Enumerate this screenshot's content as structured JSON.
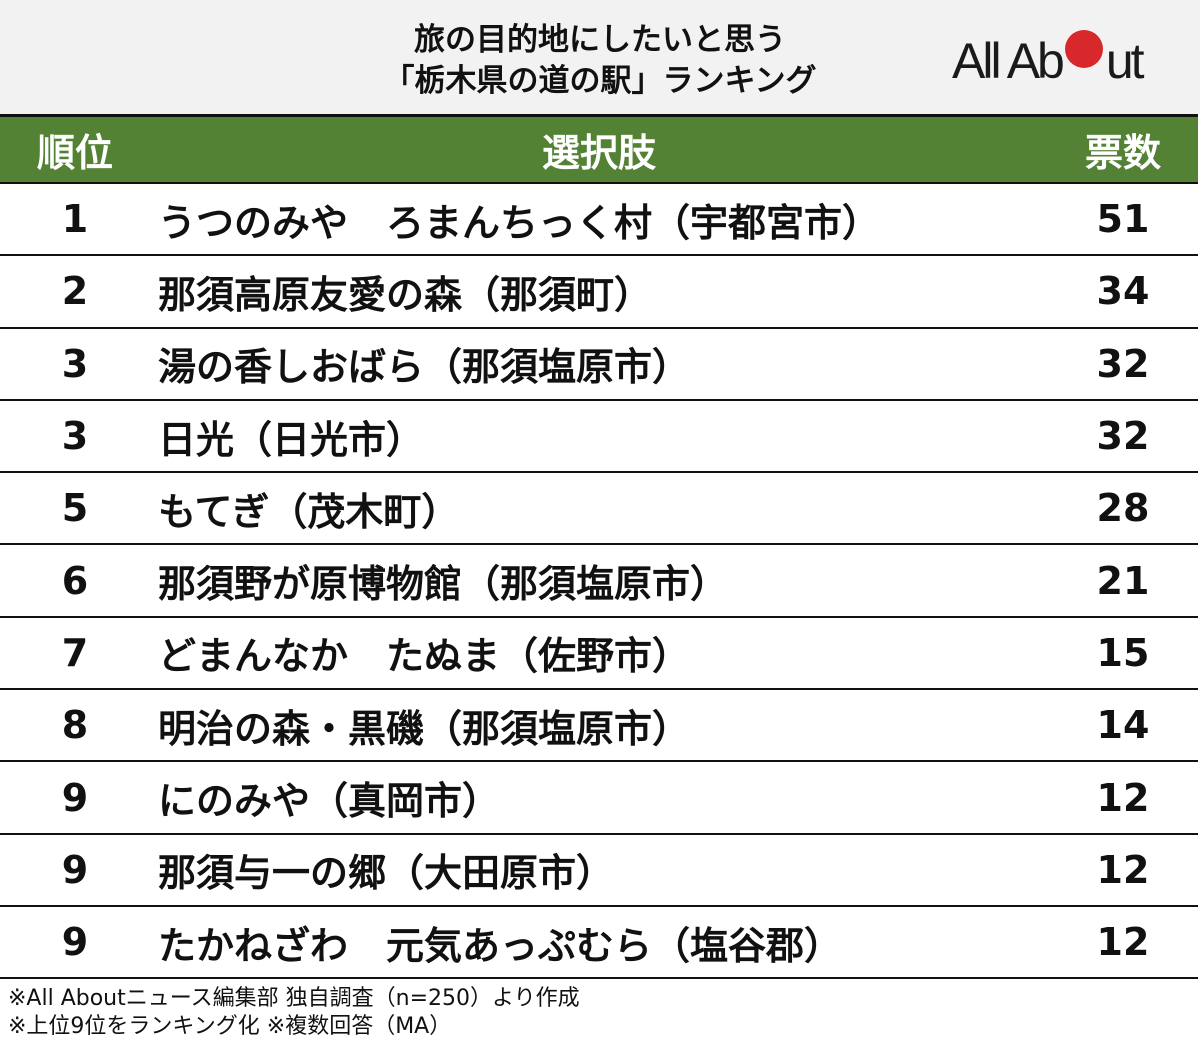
{
  "header": {
    "title_line1": "旅の目的地にしたいと思う",
    "title_line2": "「栃木県の道の駅」ランキング",
    "logo": {
      "text_before": "All Ab",
      "text_after": "ut",
      "dot_color": "#d7282b"
    }
  },
  "table": {
    "header_bg": "#548235",
    "columns": [
      "順位",
      "選択肢",
      "票数"
    ],
    "rows": [
      {
        "rank": "1",
        "name": "うつのみや　ろまんちっく村（宇都宮市）",
        "votes": "51"
      },
      {
        "rank": "2",
        "name": "那須高原友愛の森（那須町）",
        "votes": "34"
      },
      {
        "rank": "3",
        "name": "湯の香しおばら（那須塩原市）",
        "votes": "32"
      },
      {
        "rank": "3",
        "name": "日光（日光市）",
        "votes": "32"
      },
      {
        "rank": "5",
        "name": "もてぎ（茂木町）",
        "votes": "28"
      },
      {
        "rank": "6",
        "name": "那須野が原博物館（那須塩原市）",
        "votes": "21"
      },
      {
        "rank": "7",
        "name": "どまんなか　たぬま（佐野市）",
        "votes": "15"
      },
      {
        "rank": "8",
        "name": "明治の森・黒磯（那須塩原市）",
        "votes": "14"
      },
      {
        "rank": "9",
        "name": "にのみや（真岡市）",
        "votes": "12"
      },
      {
        "rank": "9",
        "name": "那須与一の郷（大田原市）",
        "votes": "12"
      },
      {
        "rank": "9",
        "name": "たかねざわ　元気あっぷむら（塩谷郡）",
        "votes": "12"
      }
    ]
  },
  "notes": {
    "line1": "※All Aboutニュース編集部 独自調査（n=250）より作成",
    "line2": "※上位9位をランキング化 ※複数回答（MA）"
  },
  "chart_data": {
    "type": "table",
    "title": "旅の目的地にしたいと思う「栃木県の道の駅」ランキング",
    "columns": [
      "順位",
      "選択肢",
      "票数"
    ],
    "categories": [
      "うつのみや　ろまんちっく村（宇都宮市）",
      "那須高原友愛の森（那須町）",
      "湯の香しおばら（那須塩原市）",
      "日光（日光市）",
      "もてぎ（茂木町）",
      "那須野が原博物館（那須塩原市）",
      "どまんなか　たぬま（佐野市）",
      "明治の森・黒磯（那須塩原市）",
      "にのみや（真岡市）",
      "那須与一の郷（大田原市）",
      "たかねざわ　元気あっぷむら（塩谷郡）"
    ],
    "ranks": [
      1,
      2,
      3,
      3,
      5,
      6,
      7,
      8,
      9,
      9,
      9
    ],
    "values": [
      51,
      34,
      32,
      32,
      28,
      21,
      15,
      14,
      12,
      12,
      12
    ],
    "annotations": [
      "※All Aboutニュース編集部 独自調査（n=250）より作成",
      "※上位9位をランキング化 ※複数回答（MA）"
    ]
  }
}
